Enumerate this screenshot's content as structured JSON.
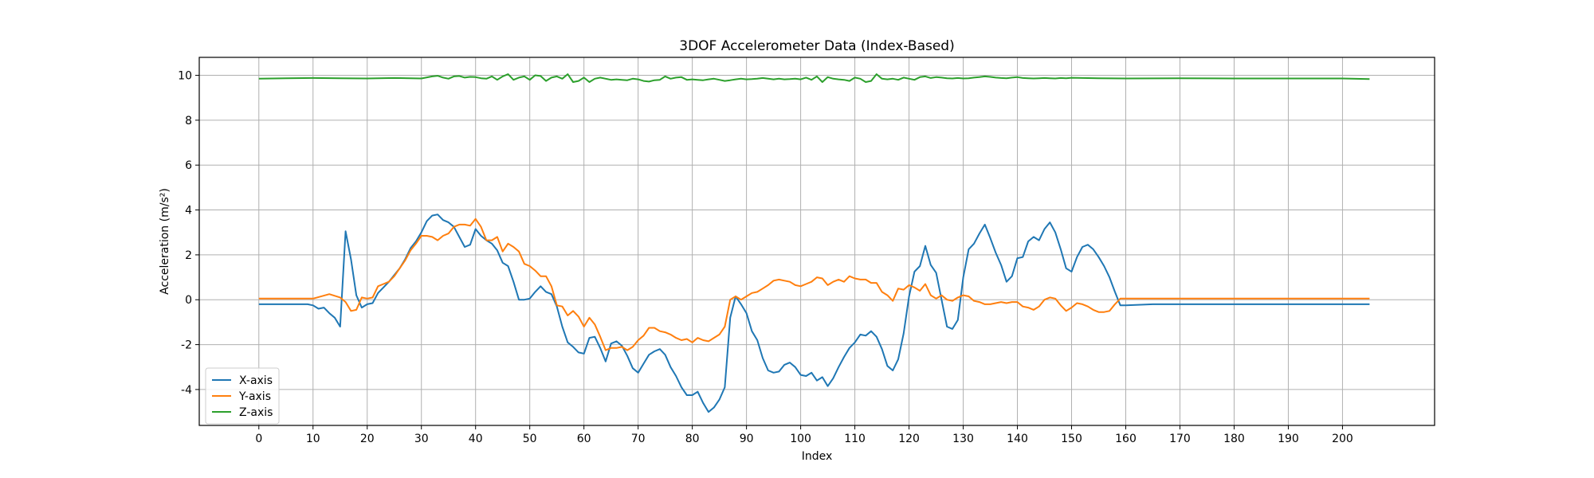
{
  "chart_data": {
    "type": "line",
    "title": "3DOF Accelerometer Data (Index-Based)",
    "xlabel": "Index",
    "ylabel": "Acceleration (m/s²)",
    "xlim": [
      -11,
      217
    ],
    "ylim": [
      -5.6,
      10.8
    ],
    "xticks": [
      0,
      10,
      20,
      30,
      40,
      50,
      60,
      70,
      80,
      90,
      100,
      110,
      120,
      130,
      140,
      150,
      160,
      170,
      180,
      190,
      200
    ],
    "yticks": [
      -4,
      -2,
      0,
      2,
      4,
      6,
      8,
      10
    ],
    "grid": true,
    "legend_position": "lower-left",
    "series": [
      {
        "name": "X-axis",
        "color": "#1f77b4",
        "x": [
          0,
          5,
          9,
          10,
          11,
          12,
          13,
          14,
          15,
          16,
          17,
          18,
          19,
          20,
          21,
          22,
          23,
          24,
          25,
          26,
          27,
          28,
          29,
          30,
          31,
          32,
          33,
          34,
          35,
          36,
          37,
          38,
          39,
          40,
          41,
          42,
          43,
          44,
          45,
          46,
          47,
          48,
          49,
          50,
          51,
          52,
          53,
          54,
          55,
          56,
          57,
          58,
          59,
          60,
          61,
          62,
          63,
          64,
          65,
          66,
          67,
          68,
          69,
          70,
          71,
          72,
          73,
          74,
          75,
          76,
          77,
          78,
          79,
          80,
          81,
          82,
          83,
          84,
          85,
          86,
          87,
          88,
          89,
          90,
          91,
          92,
          93,
          94,
          95,
          96,
          97,
          98,
          99,
          100,
          101,
          102,
          103,
          104,
          105,
          106,
          107,
          108,
          109,
          110,
          111,
          112,
          113,
          114,
          115,
          116,
          117,
          118,
          119,
          120,
          121,
          122,
          123,
          124,
          125,
          126,
          127,
          128,
          129,
          130,
          131,
          132,
          133,
          134,
          135,
          136,
          137,
          138,
          139,
          140,
          141,
          142,
          143,
          144,
          145,
          146,
          147,
          148,
          149,
          150,
          151,
          152,
          153,
          154,
          155,
          156,
          157,
          158,
          159,
          160,
          165,
          170,
          180,
          190,
          200,
          205
        ],
        "values": [
          -0.2,
          -0.2,
          -0.2,
          -0.25,
          -0.4,
          -0.35,
          -0.6,
          -0.8,
          -1.2,
          3.05,
          1.8,
          0.2,
          -0.35,
          -0.2,
          -0.15,
          0.3,
          0.55,
          0.8,
          1.1,
          1.4,
          1.8,
          2.3,
          2.6,
          3.0,
          3.5,
          3.75,
          3.8,
          3.55,
          3.45,
          3.25,
          2.8,
          2.35,
          2.45,
          3.15,
          2.85,
          2.65,
          2.5,
          2.2,
          1.65,
          1.5,
          0.8,
          0.0,
          0.0,
          0.05,
          0.35,
          0.6,
          0.35,
          0.25,
          -0.3,
          -1.2,
          -1.9,
          -2.1,
          -2.35,
          -2.4,
          -1.7,
          -1.65,
          -2.15,
          -2.75,
          -1.95,
          -1.85,
          -2.05,
          -2.5,
          -3.05,
          -3.25,
          -2.85,
          -2.45,
          -2.3,
          -2.2,
          -2.45,
          -3.0,
          -3.4,
          -3.9,
          -4.25,
          -4.25,
          -4.1,
          -4.6,
          -5.0,
          -4.8,
          -4.45,
          -3.9,
          -0.8,
          0.15,
          -0.2,
          -0.6,
          -1.4,
          -1.8,
          -2.6,
          -3.15,
          -3.25,
          -3.2,
          -2.9,
          -2.8,
          -3.0,
          -3.35,
          -3.4,
          -3.25,
          -3.6,
          -3.45,
          -3.85,
          -3.5,
          -3.0,
          -2.55,
          -2.15,
          -1.9,
          -1.55,
          -1.6,
          -1.4,
          -1.65,
          -2.2,
          -2.95,
          -3.15,
          -2.65,
          -1.5,
          0.15,
          1.25,
          1.5,
          2.4,
          1.55,
          1.2,
          0.0,
          -1.2,
          -1.3,
          -0.9,
          1.0,
          2.25,
          2.5,
          2.95,
          3.35,
          2.75,
          2.1,
          1.55,
          0.8,
          1.05,
          1.85,
          1.9,
          2.6,
          2.8,
          2.65,
          3.15,
          3.45,
          3.0,
          2.25,
          1.4,
          1.25,
          1.9,
          2.35,
          2.45,
          2.25,
          1.9,
          1.5,
          1.0,
          0.35,
          -0.25,
          -0.25,
          -0.2,
          -0.2,
          -0.2,
          -0.2,
          -0.2,
          -0.2
        ]
      },
      {
        "name": "Y-axis",
        "color": "#ff7f0e",
        "x": [
          0,
          5,
          10,
          13,
          15,
          16,
          17,
          18,
          19,
          20,
          21,
          22,
          23,
          24,
          25,
          26,
          27,
          28,
          29,
          30,
          31,
          32,
          33,
          34,
          35,
          36,
          37,
          38,
          39,
          40,
          41,
          42,
          43,
          44,
          45,
          46,
          47,
          48,
          49,
          50,
          51,
          52,
          53,
          54,
          55,
          56,
          57,
          58,
          59,
          60,
          61,
          62,
          63,
          64,
          65,
          66,
          67,
          68,
          69,
          70,
          71,
          72,
          73,
          74,
          75,
          76,
          77,
          78,
          79,
          80,
          81,
          82,
          83,
          84,
          85,
          86,
          87,
          88,
          89,
          90,
          91,
          92,
          93,
          94,
          95,
          96,
          97,
          98,
          99,
          100,
          101,
          102,
          103,
          104,
          105,
          106,
          107,
          108,
          109,
          110,
          111,
          112,
          113,
          114,
          115,
          116,
          117,
          118,
          119,
          120,
          121,
          122,
          123,
          124,
          125,
          126,
          127,
          128,
          129,
          130,
          131,
          132,
          133,
          134,
          135,
          136,
          137,
          138,
          139,
          140,
          141,
          142,
          143,
          144,
          145,
          146,
          147,
          148,
          149,
          150,
          151,
          152,
          153,
          154,
          155,
          156,
          157,
          158,
          159,
          160,
          170,
          180,
          190,
          200,
          205
        ],
        "values": [
          0.05,
          0.05,
          0.05,
          0.25,
          0.1,
          -0.1,
          -0.5,
          -0.45,
          0.1,
          0.05,
          0.1,
          0.6,
          0.7,
          0.8,
          1.05,
          1.4,
          1.75,
          2.2,
          2.5,
          2.85,
          2.85,
          2.8,
          2.65,
          2.85,
          2.95,
          3.25,
          3.35,
          3.35,
          3.3,
          3.6,
          3.25,
          2.65,
          2.65,
          2.8,
          2.15,
          2.5,
          2.35,
          2.15,
          1.6,
          1.5,
          1.3,
          1.05,
          1.05,
          0.6,
          -0.25,
          -0.3,
          -0.7,
          -0.5,
          -0.75,
          -1.2,
          -0.8,
          -1.1,
          -1.65,
          -2.25,
          -2.15,
          -2.15,
          -2.1,
          -2.25,
          -2.1,
          -1.8,
          -1.6,
          -1.25,
          -1.25,
          -1.4,
          -1.45,
          -1.55,
          -1.7,
          -1.8,
          -1.75,
          -1.9,
          -1.7,
          -1.8,
          -1.85,
          -1.7,
          -1.55,
          -1.2,
          0.0,
          0.15,
          0.0,
          0.15,
          0.3,
          0.35,
          0.5,
          0.65,
          0.85,
          0.9,
          0.85,
          0.8,
          0.65,
          0.6,
          0.7,
          0.8,
          1.0,
          0.95,
          0.65,
          0.8,
          0.9,
          0.8,
          1.05,
          0.95,
          0.9,
          0.9,
          0.75,
          0.75,
          0.35,
          0.2,
          -0.05,
          0.5,
          0.45,
          0.65,
          0.55,
          0.4,
          0.7,
          0.2,
          0.05,
          0.2,
          0.0,
          -0.05,
          0.1,
          0.2,
          0.15,
          -0.05,
          -0.1,
          -0.2,
          -0.2,
          -0.15,
          -0.1,
          -0.15,
          -0.1,
          -0.1,
          -0.3,
          -0.35,
          -0.45,
          -0.3,
          0.0,
          0.1,
          0.05,
          -0.25,
          -0.5,
          -0.35,
          -0.15,
          -0.2,
          -0.3,
          -0.45,
          -0.55,
          -0.55,
          -0.5,
          -0.2,
          0.05,
          0.05,
          0.05,
          0.05,
          0.05,
          0.05,
          0.05
        ]
      },
      {
        "name": "Z-axis",
        "color": "#2ca02c",
        "x": [
          0,
          5,
          10,
          15,
          20,
          25,
          30,
          32,
          33,
          34,
          35,
          36,
          37,
          38,
          39,
          40,
          41,
          42,
          43,
          44,
          45,
          46,
          47,
          48,
          49,
          50,
          51,
          52,
          53,
          54,
          55,
          56,
          57,
          58,
          59,
          60,
          61,
          62,
          63,
          64,
          65,
          66,
          67,
          68,
          69,
          70,
          71,
          72,
          73,
          74,
          75,
          76,
          77,
          78,
          79,
          80,
          81,
          82,
          83,
          84,
          85,
          86,
          87,
          88,
          89,
          90,
          91,
          92,
          93,
          94,
          95,
          96,
          97,
          98,
          99,
          100,
          101,
          102,
          103,
          104,
          105,
          106,
          107,
          108,
          109,
          110,
          111,
          112,
          113,
          114,
          115,
          116,
          117,
          118,
          119,
          120,
          121,
          122,
          123,
          124,
          125,
          126,
          127,
          128,
          129,
          130,
          131,
          132,
          133,
          134,
          135,
          136,
          137,
          138,
          139,
          140,
          141,
          142,
          143,
          144,
          145,
          146,
          147,
          148,
          149,
          150,
          155,
          160,
          170,
          180,
          190,
          200,
          205
        ],
        "values": [
          9.85,
          9.87,
          9.88,
          9.87,
          9.86,
          9.88,
          9.86,
          9.95,
          9.98,
          9.9,
          9.85,
          9.95,
          9.97,
          9.9,
          9.93,
          9.92,
          9.87,
          9.85,
          9.95,
          9.8,
          9.95,
          10.05,
          9.8,
          9.9,
          9.95,
          9.8,
          10.0,
          9.97,
          9.75,
          9.9,
          9.95,
          9.85,
          10.05,
          9.7,
          9.75,
          9.9,
          9.7,
          9.85,
          9.9,
          9.85,
          9.8,
          9.82,
          9.8,
          9.78,
          9.85,
          9.82,
          9.75,
          9.72,
          9.78,
          9.8,
          9.95,
          9.85,
          9.9,
          9.92,
          9.8,
          9.82,
          9.8,
          9.78,
          9.82,
          9.85,
          9.8,
          9.75,
          9.78,
          9.82,
          9.85,
          9.82,
          9.83,
          9.85,
          9.88,
          9.85,
          9.82,
          9.85,
          9.82,
          9.83,
          9.85,
          9.82,
          9.9,
          9.8,
          9.95,
          9.7,
          9.92,
          9.85,
          9.82,
          9.8,
          9.75,
          9.9,
          9.85,
          9.7,
          9.75,
          10.05,
          9.85,
          9.82,
          9.85,
          9.8,
          9.9,
          9.85,
          9.8,
          9.92,
          9.95,
          9.88,
          9.92,
          9.9,
          9.87,
          9.86,
          9.88,
          9.86,
          9.87,
          9.9,
          9.92,
          9.95,
          9.93,
          9.9,
          9.88,
          9.87,
          9.9,
          9.92,
          9.88,
          9.87,
          9.86,
          9.87,
          9.88,
          9.87,
          9.86,
          9.88,
          9.87,
          9.89,
          9.87,
          9.86,
          9.87,
          9.86,
          9.86,
          9.86,
          9.83
        ]
      }
    ]
  }
}
